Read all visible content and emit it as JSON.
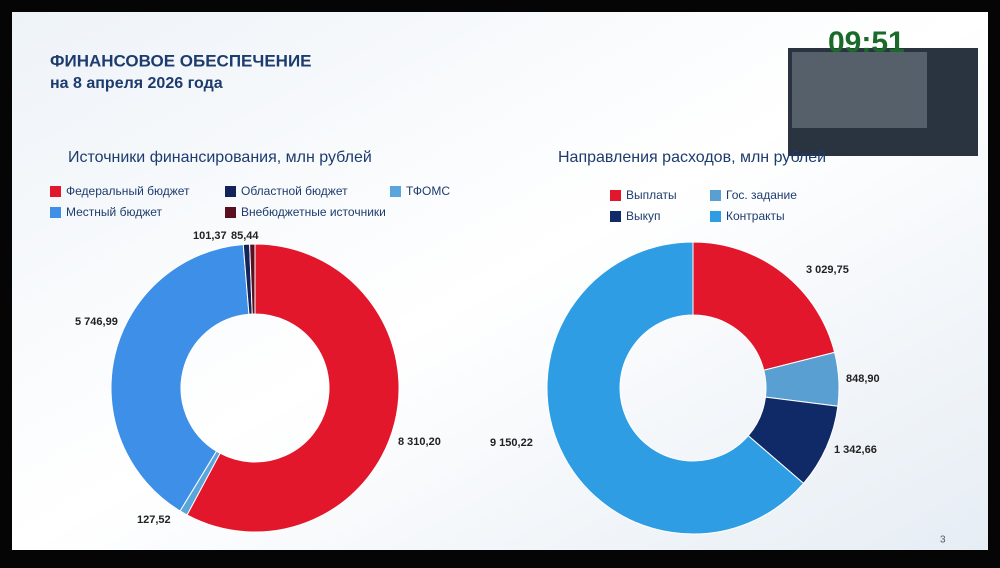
{
  "header": {
    "title": "ФИНАНСОВОЕ ОБЕСПЕЧЕНИЕ",
    "subtitle": "на 8 апреля 2026 года",
    "clock": "09:51"
  },
  "page_number": "3",
  "chart_data": [
    {
      "type": "donut",
      "title": "Источники финансирования, млн рублей",
      "series": [
        {
          "name": "Федеральный бюджет",
          "color": "#e3172b",
          "values": [
            8310.2
          ],
          "value_labels": [
            "8 310,20"
          ]
        },
        {
          "name": "ТФОМС",
          "color": "#5aa6dc",
          "values": [
            127.52
          ],
          "value_labels": [
            "127,52"
          ]
        },
        {
          "name": "Местный бюджет",
          "color": "#3d8fe8",
          "values": [
            5746.99
          ],
          "value_labels": [
            "5 746,99"
          ]
        },
        {
          "name": "Областной бюджет",
          "color": "#13245a",
          "values": [
            101.37
          ],
          "value_labels": [
            "101,37"
          ]
        },
        {
          "name": "Внебюджетные источники",
          "color": "#5a1020",
          "values": [
            85.44
          ],
          "value_labels": [
            "85,44"
          ]
        }
      ]
    },
    {
      "type": "donut",
      "title": "Направления расходов, млн рублей",
      "series": [
        {
          "name": "Выплаты",
          "color": "#e3172b",
          "values": [
            3029.75
          ],
          "value_labels": [
            "3 029,75"
          ]
        },
        {
          "name": "Гос. задание",
          "color": "#5a9fd2",
          "values": [
            848.9
          ],
          "value_labels": [
            "848,90"
          ]
        },
        {
          "name": "Выкуп",
          "color": "#0f2a66",
          "values": [
            1342.66
          ],
          "value_labels": [
            "1 342,66"
          ]
        },
        {
          "name": "Контракты",
          "color": "#2e9de3",
          "values": [
            9150.22
          ],
          "value_labels": [
            "9 150,22"
          ]
        }
      ]
    }
  ]
}
